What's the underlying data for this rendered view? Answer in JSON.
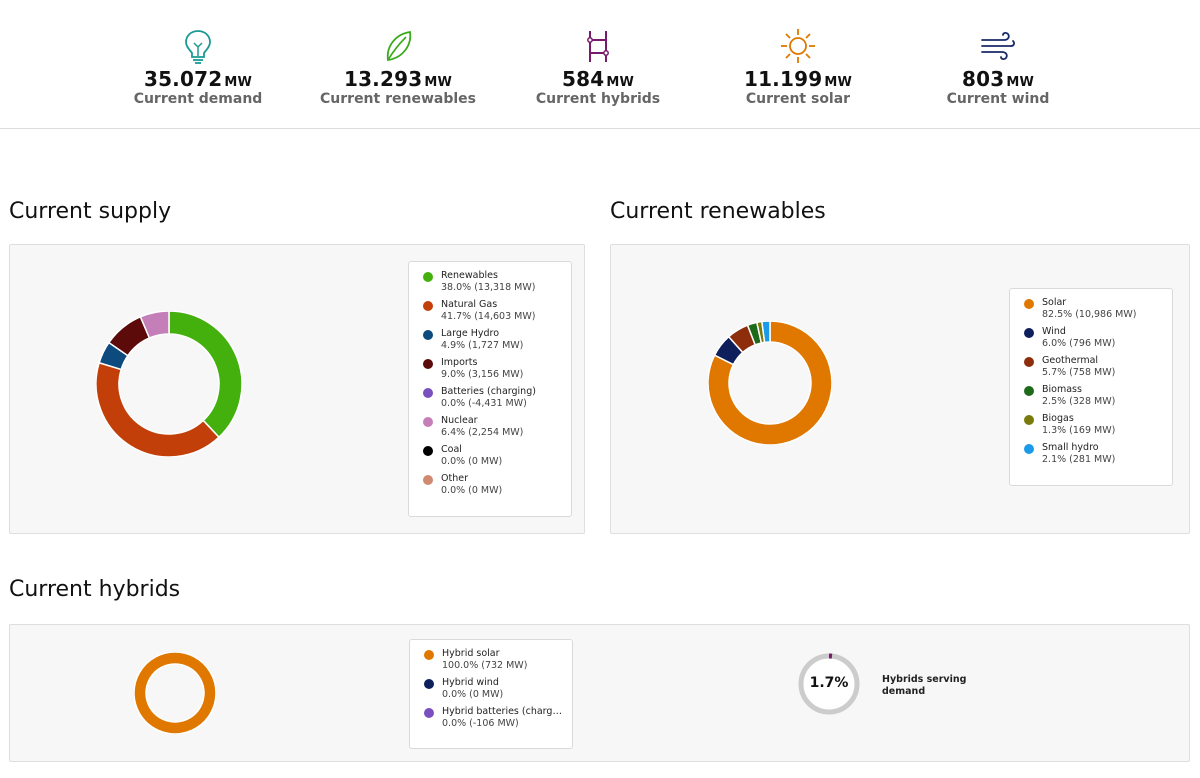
{
  "stats": [
    {
      "value": "35.072",
      "unit": "MW",
      "label": "Current demand",
      "icon": "lightbulb-icon",
      "color": "#1a9a94"
    },
    {
      "value": "13.293",
      "unit": "MW",
      "label": "Current renewables",
      "icon": "leaf-icon",
      "color": "#3aaa1a"
    },
    {
      "value": "584",
      "unit": "MW",
      "label": "Current hybrids",
      "icon": "hybrid-icon",
      "color": "#7a1a6a"
    },
    {
      "value": "11.199",
      "unit": "MW",
      "label": "Current solar",
      "icon": "sun-icon",
      "color": "#e07800"
    },
    {
      "value": "803",
      "unit": "MW",
      "label": "Current wind",
      "icon": "wind-icon",
      "color": "#1a2a6a"
    }
  ],
  "sections": {
    "supply_title": "Current supply",
    "renewables_title": "Current renewables",
    "hybrids_title": "Current hybrids"
  },
  "chart_data": [
    {
      "type": "pie",
      "title": "Current supply",
      "series": [
        {
          "name": "Renewables",
          "value": "38.0% (13,318 MW)",
          "percent": 38.0,
          "color": "#44b00e"
        },
        {
          "name": "Natural Gas",
          "value": "41.7% (14,603 MW)",
          "percent": 41.7,
          "color": "#c23f0a"
        },
        {
          "name": "Large Hydro",
          "value": "4.9% (1,727 MW)",
          "percent": 4.9,
          "color": "#0d4a7e"
        },
        {
          "name": "Imports",
          "value": "9.0% (3,156 MW)",
          "percent": 9.0,
          "color": "#5c0a0a"
        },
        {
          "name": "Batteries (charging)",
          "value": "0.0% (-4,431 MW)",
          "percent": 0.0,
          "color": "#7a4fbe"
        },
        {
          "name": "Nuclear",
          "value": "6.4% (2,254 MW)",
          "percent": 6.4,
          "color": "#c47fb9"
        },
        {
          "name": "Coal",
          "value": "0.0% (0 MW)",
          "percent": 0.0,
          "color": "#000000"
        },
        {
          "name": "Other",
          "value": "0.0% (0 MW)",
          "percent": 0.0,
          "color": "#d08a70"
        }
      ]
    },
    {
      "type": "pie",
      "title": "Current renewables",
      "series": [
        {
          "name": "Solar",
          "value": "82.5% (10,986 MW)",
          "percent": 82.5,
          "color": "#e07800"
        },
        {
          "name": "Wind",
          "value": "6.0% (796 MW)",
          "percent": 6.0,
          "color": "#0f1f5c"
        },
        {
          "name": "Geothermal",
          "value": "5.7% (758 MW)",
          "percent": 5.7,
          "color": "#8e2d0c"
        },
        {
          "name": "Biomass",
          "value": "2.5% (328 MW)",
          "percent": 2.5,
          "color": "#1e6a1a"
        },
        {
          "name": "Biogas",
          "value": "1.3% (169 MW)",
          "percent": 1.3,
          "color": "#7a7a0a"
        },
        {
          "name": "Small hydro",
          "value": "2.1% (281 MW)",
          "percent": 2.1,
          "color": "#1a9ae8"
        }
      ]
    },
    {
      "type": "pie",
      "title": "Current hybrids",
      "series": [
        {
          "name": "Hybrid solar",
          "value": "100.0% (732 MW)",
          "percent": 100.0,
          "color": "#e07800"
        },
        {
          "name": "Hybrid wind",
          "value": "0.0% (0 MW)",
          "percent": 0.0,
          "color": "#0f1f5c"
        },
        {
          "name": "Hybrid batteries (chargin...",
          "value": "0.0% (-106 MW)",
          "percent": 0.0,
          "color": "#7a4fbe"
        }
      ]
    }
  ],
  "gauge": {
    "text": "1.7%",
    "percent": 1.7,
    "caption": "Hybrids serving demand",
    "color": "#7a1a6a",
    "track_color": "#cccccc"
  }
}
